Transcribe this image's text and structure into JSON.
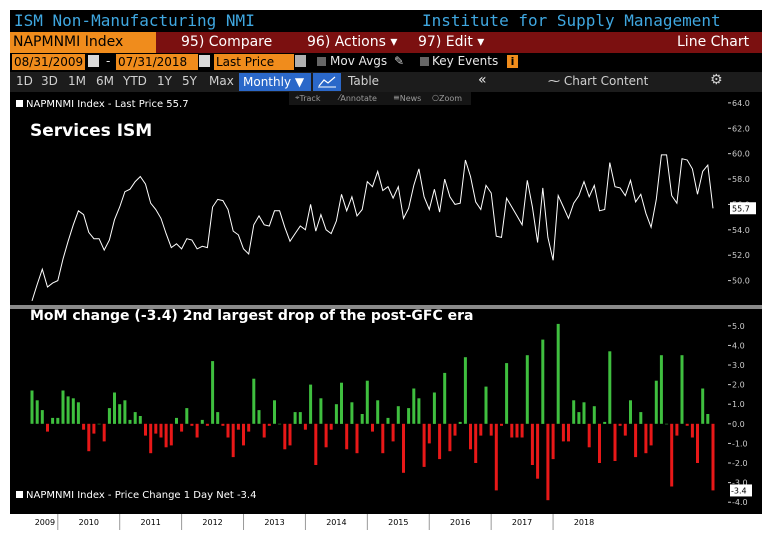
{
  "titlebar": {
    "left_title": "ISM Non-Manufacturing NMI",
    "right_title": "Institute for Supply Management"
  },
  "toolbar": {
    "ticker": "NAPMNMI Index",
    "compare": "95) Compare",
    "actions": "96) Actions",
    "edit": "97) Edit",
    "chart_type": "Line Chart",
    "dropdown_arrow": "▾"
  },
  "date_range": {
    "start": "08/31/2009",
    "end": "07/31/2018",
    "dash": "-",
    "field": "Last Price",
    "mov_avgs": "Mov Avgs",
    "key_events": "Key Events",
    "info": "i"
  },
  "periods": [
    "1D",
    "3D",
    "1M",
    "6M",
    "YTD",
    "1Y",
    "5Y",
    "Max"
  ],
  "frequency": "Monthly",
  "frequency_arrow": "▼",
  "table_button": "Table",
  "collapse": "«",
  "chart_content": "Chart Content",
  "gear": "⚙",
  "tools": [
    "Track",
    "Annotate",
    "News",
    "Zoom"
  ],
  "legend_top": "NAPMNMI Index - Last Price 55.7",
  "legend_bottom": "NAPMNMI Index - Price Change 1 Day Net -3.4",
  "annotation_top": "Services ISM",
  "annotation_bottom": "MoM change (-3.4) 2nd largest drop of the post-GFC era",
  "colors": {
    "background": "#000000",
    "title_text": "#3fa7e0",
    "toolbar_bg": "#7b1010",
    "ticker_bg": "#f08c1c",
    "selected_bg": "#2b68c9",
    "line": "#ffffff",
    "positive": "#3fbf3f",
    "negative": "#e81818"
  },
  "chart_data": [
    {
      "type": "line",
      "title": "Services ISM",
      "series": [
        {
          "name": "NAPMNMI Index - Last Price"
        }
      ],
      "x_tick_labels": [
        "2009",
        "2010",
        "2011",
        "2012",
        "2013",
        "2014",
        "2015",
        "2016",
        "2017",
        "2018"
      ],
      "ylim": [
        48.0,
        64.7
      ],
      "y_ticks": [
        50.0,
        52.0,
        54.0,
        56.0,
        58.0,
        60.0,
        62.0,
        64.0
      ],
      "last_value": 55.7,
      "last_label": "55.7",
      "values": [
        48.4,
        49.7,
        50.9,
        49.5,
        49.8,
        50.0,
        51.7,
        53.1,
        54.4,
        55.5,
        55.2,
        53.8,
        53.3,
        53.3,
        52.4,
        53.2,
        54.8,
        55.8,
        57.0,
        57.2,
        57.8,
        58.2,
        57.6,
        56.1,
        55.6,
        54.9,
        53.7,
        52.6,
        52.9,
        52.5,
        53.3,
        53.2,
        52.5,
        52.7,
        52.6,
        55.8,
        56.4,
        56.3,
        55.6,
        53.9,
        53.6,
        52.5,
        52.1,
        54.4,
        55.1,
        54.4,
        54.3,
        55.5,
        55.5,
        54.2,
        53.1,
        53.7,
        54.3,
        54.0,
        56.0,
        53.9,
        55.2,
        54.0,
        53.7,
        54.7,
        56.8,
        55.5,
        56.6,
        55.1,
        55.6,
        57.8,
        57.4,
        58.6,
        57.1,
        57.4,
        56.5,
        57.4,
        54.9,
        55.7,
        57.5,
        58.8,
        56.6,
        55.6,
        57.2,
        55.4,
        58.0,
        56.6,
        56.0,
        56.1,
        59.5,
        58.2,
        56.2,
        55.6,
        57.5,
        56.9,
        53.5,
        53.4,
        56.5,
        55.8,
        55.1,
        54.4,
        57.9,
        55.8,
        53.0,
        57.3,
        53.4,
        51.6,
        56.7,
        55.8,
        54.9,
        56.1,
        56.7,
        57.8,
        56.6,
        57.5,
        55.5,
        55.6,
        59.3,
        57.4,
        57.3,
        56.7,
        57.9,
        56.2,
        56.8,
        55.3,
        54.2,
        56.4,
        59.9,
        59.9,
        56.7,
        56.1,
        59.6,
        59.5,
        58.8,
        56.8,
        58.6,
        59.1,
        55.7
      ],
      "x_range": [
        "2009-08",
        "2018-07"
      ]
    },
    {
      "type": "bar",
      "title": "MoM change (-3.4) 2nd largest drop of the post-GFC era",
      "series": [
        {
          "name": "NAPMNMI Index - Price Change 1 Day Net"
        }
      ],
      "ylim": [
        -4.5,
        5.4
      ],
      "y_ticks": [
        5.0,
        4.0,
        3.0,
        2.0,
        1.0,
        0.0,
        -1.0,
        -2.0,
        -3.0,
        -4.0
      ],
      "last_value": -3.4,
      "last_label": "-3.4",
      "values": [
        1.7,
        1.2,
        0.7,
        -0.4,
        0.3,
        0.3,
        1.7,
        1.4,
        1.3,
        1.1,
        -0.3,
        -1.4,
        -0.5,
        0.0,
        -0.9,
        0.8,
        1.6,
        1.0,
        1.2,
        0.2,
        0.6,
        0.4,
        -0.6,
        -1.5,
        -0.5,
        -0.7,
        -1.2,
        -1.1,
        0.3,
        -0.4,
        0.8,
        -0.1,
        -0.7,
        0.2,
        -0.1,
        3.2,
        0.6,
        -0.1,
        -0.7,
        -1.7,
        -0.3,
        -1.1,
        -0.4,
        2.3,
        0.7,
        -0.7,
        -0.1,
        1.2,
        0.0,
        -1.3,
        -1.1,
        0.6,
        0.6,
        -0.3,
        2.0,
        -2.1,
        1.3,
        -1.2,
        -0.3,
        1.0,
        2.1,
        -1.3,
        1.1,
        -1.5,
        0.5,
        2.2,
        -0.4,
        1.2,
        -1.5,
        0.3,
        -0.9,
        0.9,
        -2.5,
        0.8,
        1.8,
        1.3,
        -2.2,
        -1.0,
        1.6,
        -1.8,
        2.6,
        -1.4,
        -0.6,
        0.1,
        3.4,
        -1.3,
        -2.0,
        -0.6,
        1.9,
        -0.6,
        -3.4,
        -0.1,
        3.1,
        -0.7,
        -0.7,
        -0.7,
        3.5,
        -2.1,
        -2.8,
        4.3,
        -3.9,
        -1.8,
        5.1,
        -0.9,
        -0.9,
        1.2,
        0.6,
        1.1,
        -1.2,
        0.9,
        -2.0,
        0.1,
        3.7,
        -1.9,
        -0.1,
        -0.6,
        1.2,
        -1.7,
        0.6,
        -1.5,
        -1.1,
        2.2,
        3.5,
        0.0,
        -3.2,
        -0.6,
        3.5,
        -0.1,
        -0.7,
        -2.0,
        1.8,
        0.5,
        -3.4
      ]
    }
  ]
}
